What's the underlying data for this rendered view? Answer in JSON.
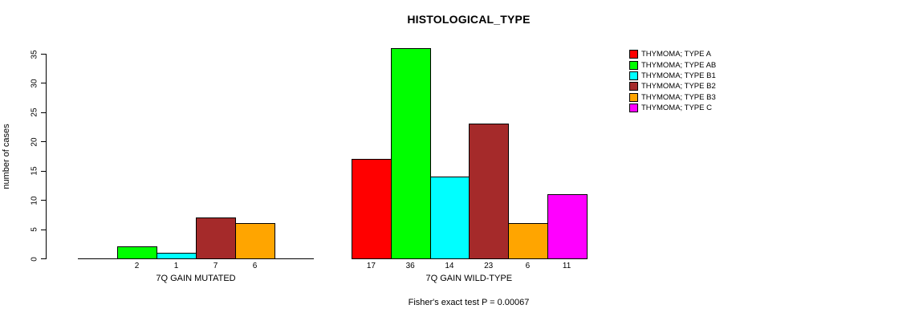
{
  "chart_data": {
    "type": "bar",
    "title": "HISTOLOGICAL_TYPE",
    "ylabel": "number of cases",
    "annotation": "Fisher's exact test P = 0.00067",
    "yticks": [
      0,
      5,
      10,
      15,
      20,
      25,
      30,
      35
    ],
    "ylim": [
      0,
      35
    ],
    "grid": false,
    "legend_position": "right",
    "legend": [
      {
        "label": "THYMOMA; TYPE A",
        "color": "#ff0000"
      },
      {
        "label": "THYMOMA; TYPE AB",
        "color": "#00ff00"
      },
      {
        "label": "THYMOMA; TYPE B1",
        "color": "#00ffff"
      },
      {
        "label": "THYMOMA; TYPE B2",
        "color": "#a52a2a"
      },
      {
        "label": "THYMOMA; TYPE B3",
        "color": "#ffa500"
      },
      {
        "label": "THYMOMA; TYPE C",
        "color": "#ff00ff"
      }
    ],
    "series_names": [
      "THYMOMA; TYPE A",
      "THYMOMA; TYPE AB",
      "THYMOMA; TYPE B1",
      "THYMOMA; TYPE B2",
      "THYMOMA; TYPE B3",
      "THYMOMA; TYPE C"
    ],
    "groups": [
      {
        "label": "7Q GAIN MUTATED",
        "values": [
          0,
          2,
          1,
          7,
          6,
          0
        ],
        "bar_labels": [
          "",
          "2",
          "1",
          "7",
          "6",
          ""
        ]
      },
      {
        "label": "7Q GAIN WILD-TYPE",
        "values": [
          17,
          36,
          14,
          23,
          6,
          11
        ],
        "bar_labels": [
          "17",
          "36",
          "14",
          "23",
          "6",
          "11"
        ]
      }
    ]
  }
}
